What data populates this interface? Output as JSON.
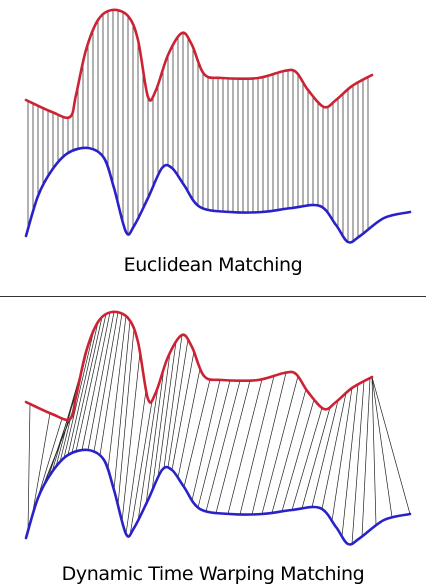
{
  "panels": [
    {
      "caption": "Euclidean Matching",
      "mode": "euclidean"
    },
    {
      "caption": "Dynamic Time Warping Matching",
      "mode": "dtw"
    }
  ],
  "colors": {
    "series_a": "#cc2233",
    "series_b": "#2a22c8",
    "connector": "#222222",
    "divider": "#333333"
  }
}
